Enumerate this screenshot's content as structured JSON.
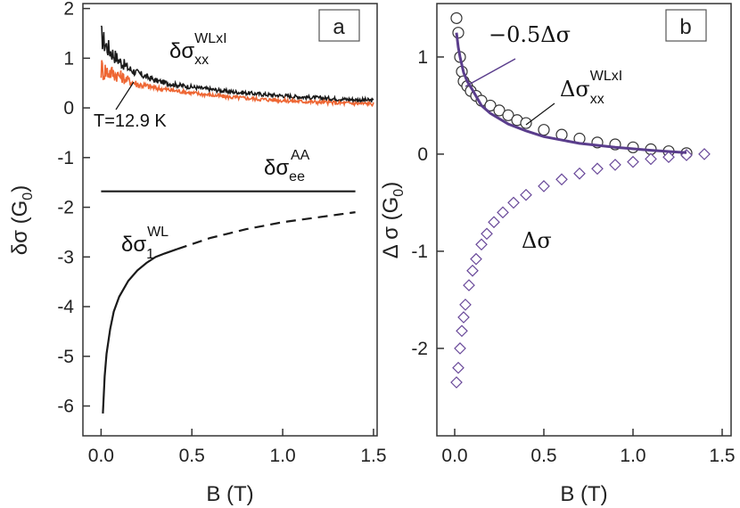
{
  "chart_data": [
    {
      "panel": "a",
      "type": "line",
      "panel_label": "a",
      "xlabel": "B (T)",
      "ylabel": "δσ (G0)",
      "ylabel_main": "δσ (G",
      "ylabel_sub": "0",
      "ylabel_close": ")",
      "xlim": [
        -0.1,
        1.52
      ],
      "ylim": [
        -6.6,
        2.1
      ],
      "xticks": [
        0.0,
        0.5,
        1.0,
        1.5
      ],
      "xtick_labels": [
        "0.0",
        "0.5",
        "1.0",
        "1.5"
      ],
      "yticks": [
        2,
        1,
        0,
        -1,
        -2,
        -3,
        -4,
        -5,
        -6
      ],
      "ytick_labels": [
        "2",
        "1",
        "0",
        "-1",
        "-2",
        "-3",
        "-4",
        "-5",
        "-6"
      ],
      "series": [
        {
          "name": "δσxx WLxI (black)",
          "color": "#1a1a1a",
          "style": "noisy",
          "x": [
            0.0,
            0.02,
            0.05,
            0.1,
            0.15,
            0.2,
            0.3,
            0.4,
            0.5,
            0.7,
            0.9,
            1.1,
            1.3,
            1.5
          ],
          "y": [
            1.45,
            1.3,
            1.15,
            0.95,
            0.8,
            0.7,
            0.55,
            0.47,
            0.42,
            0.33,
            0.27,
            0.22,
            0.18,
            0.15
          ]
        },
        {
          "name": "T=12.9 K (orange)",
          "color": "#ee6633",
          "style": "noisy",
          "x": [
            0.0,
            0.02,
            0.05,
            0.1,
            0.15,
            0.2,
            0.3,
            0.4,
            0.5,
            0.7,
            0.9,
            1.1,
            1.3,
            1.5
          ],
          "y": [
            0.8,
            0.75,
            0.72,
            0.65,
            0.55,
            0.48,
            0.4,
            0.35,
            0.3,
            0.22,
            0.17,
            0.13,
            0.1,
            0.08
          ]
        },
        {
          "name": "δσee AA",
          "color": "#1a1a1a",
          "style": "solid",
          "x": [
            0.0,
            1.4
          ],
          "y": [
            -1.68,
            -1.68
          ]
        },
        {
          "name": "δσ1 WL (solid)",
          "color": "#1a1a1a",
          "style": "solid",
          "x": [
            0.01,
            0.02,
            0.03,
            0.05,
            0.07,
            0.1,
            0.15,
            0.2,
            0.25,
            0.3,
            0.35,
            0.42
          ],
          "y": [
            -6.15,
            -5.4,
            -4.95,
            -4.45,
            -4.1,
            -3.8,
            -3.48,
            -3.27,
            -3.12,
            -3.0,
            -2.93,
            -2.84
          ]
        },
        {
          "name": "δσ1 WL (dashed)",
          "color": "#1a1a1a",
          "style": "dashed",
          "x": [
            0.42,
            0.6,
            0.8,
            1.0,
            1.2,
            1.4
          ],
          "y": [
            -2.84,
            -2.62,
            -2.44,
            -2.3,
            -2.2,
            -2.1
          ]
        }
      ],
      "annotations": {
        "wlxx_main": "δσ",
        "wlxx_sup": "WLxI",
        "wlxx_sub": "xx",
        "temp": "T=12.9 K",
        "ee_main": "δσ",
        "ee_sup": "AA",
        "ee_sub": "ee",
        "wl1_main": "δσ",
        "wl1_sup": "WL",
        "wl1_sub": "1"
      }
    },
    {
      "panel": "b",
      "type": "scatter",
      "panel_label": "b",
      "xlabel": "B (T)",
      "ylabel": "Δσ (G0)",
      "ylabel_main": "Δ σ (G",
      "ylabel_sub": "0",
      "ylabel_close": ")",
      "xlim": [
        -0.1,
        1.55
      ],
      "ylim": [
        -2.9,
        1.55
      ],
      "xticks": [
        0.0,
        0.5,
        1.0,
        1.5
      ],
      "xtick_labels": [
        "0.0",
        "0.5",
        "1.0",
        "1.5"
      ],
      "yticks": [
        1,
        0,
        -1,
        -2
      ],
      "ytick_labels": [
        "1",
        "0",
        "-1",
        "-2"
      ],
      "series": [
        {
          "name": "ΔσxxWLxI (circles)",
          "marker": "circle",
          "color": "#333333",
          "x": [
            0.01,
            0.02,
            0.03,
            0.04,
            0.05,
            0.07,
            0.09,
            0.12,
            0.15,
            0.2,
            0.25,
            0.3,
            0.35,
            0.4,
            0.5,
            0.6,
            0.7,
            0.8,
            0.9,
            1.0,
            1.1,
            1.2,
            1.3
          ],
          "y": [
            1.4,
            1.25,
            1.0,
            0.85,
            0.75,
            0.7,
            0.65,
            0.6,
            0.55,
            0.5,
            0.45,
            0.4,
            0.35,
            0.32,
            0.25,
            0.2,
            0.16,
            0.12,
            0.1,
            0.07,
            0.05,
            0.03,
            0.01
          ]
        },
        {
          "name": "Δσ (diamonds)",
          "marker": "diamond",
          "color": "#6a4a9a",
          "x": [
            0.01,
            0.02,
            0.03,
            0.04,
            0.05,
            0.06,
            0.08,
            0.1,
            0.12,
            0.15,
            0.18,
            0.22,
            0.27,
            0.33,
            0.4,
            0.5,
            0.6,
            0.7,
            0.8,
            0.9,
            1.0,
            1.1,
            1.2,
            1.3,
            1.4
          ],
          "y": [
            -2.35,
            -2.2,
            -2.0,
            -1.82,
            -1.68,
            -1.55,
            -1.35,
            -1.2,
            -1.08,
            -0.93,
            -0.82,
            -0.7,
            -0.6,
            -0.5,
            -0.42,
            -0.33,
            -0.26,
            -0.2,
            -0.15,
            -0.11,
            -0.08,
            -0.05,
            -0.03,
            -0.01,
            0.0
          ]
        },
        {
          "name": "−0.5Δσ (line)",
          "type": "line",
          "color": "#5a3d8c",
          "x": [
            0.01,
            0.02,
            0.03,
            0.05,
            0.07,
            0.1,
            0.15,
            0.2,
            0.3,
            0.4,
            0.5,
            0.7,
            0.9,
            1.1,
            1.3
          ],
          "y": [
            1.25,
            1.1,
            1.0,
            0.84,
            0.75,
            0.66,
            0.5,
            0.42,
            0.31,
            0.24,
            0.18,
            0.11,
            0.07,
            0.04,
            0.015
          ]
        }
      ],
      "annotations": {
        "half_label": "−0.5Δσ",
        "wlxx_main": "Δσ",
        "wlxx_sup": "WLxI",
        "wlxx_sub": "xx",
        "delta_label": "Δσ"
      }
    }
  ]
}
